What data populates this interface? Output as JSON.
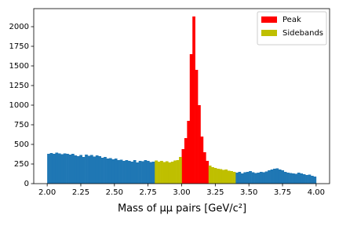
{
  "chart_data": {
    "type": "histogram",
    "x_label": "Mass of μμ pairs [GeV/c²]",
    "bins": [
      2,
      2.02,
      2.04,
      2.06,
      2.08,
      2.1,
      2.12,
      2.14,
      2.16,
      2.18,
      2.2,
      2.22,
      2.24,
      2.26,
      2.28,
      2.3,
      2.32,
      2.34,
      2.36,
      2.38,
      2.4,
      2.42,
      2.44,
      2.46,
      2.48,
      2.5,
      2.52,
      2.54,
      2.56,
      2.58,
      2.6,
      2.62,
      2.64,
      2.66,
      2.68,
      2.7,
      2.72,
      2.74,
      2.76,
      2.78,
      2.8,
      2.82,
      2.84,
      2.86,
      2.88,
      2.9,
      2.92,
      2.94,
      2.96,
      2.98,
      3,
      3.02,
      3.04,
      3.06,
      3.08,
      3.1,
      3.12,
      3.14,
      3.16,
      3.18,
      3.2,
      3.22,
      3.24,
      3.26,
      3.28,
      3.3,
      3.32,
      3.34,
      3.36,
      3.38,
      3.4,
      3.42,
      3.44,
      3.46,
      3.48,
      3.5,
      3.52,
      3.54,
      3.56,
      3.58,
      3.6,
      3.62,
      3.64,
      3.66,
      3.68,
      3.7,
      3.72,
      3.74,
      3.76,
      3.78,
      3.8,
      3.82,
      3.84,
      3.86,
      3.88,
      3.9,
      3.92,
      3.94,
      3.96,
      3.98,
      4
    ],
    "series": [
      {
        "color": "#1f77b4",
        "values": [
          380,
          390,
          380,
          395,
          385,
          375,
          385,
          380,
          370,
          380,
          360,
          350,
          365,
          340,
          370,
          355,
          365,
          345,
          360,
          350,
          330,
          340,
          320,
          325,
          310,
          320,
          300,
          305,
          290,
          300,
          290,
          280,
          300,
          270,
          290,
          285,
          300,
          290,
          275,
          280,
          null,
          null,
          null,
          null,
          null,
          null,
          null,
          null,
          null,
          null,
          null,
          null,
          null,
          null,
          null,
          null,
          null,
          null,
          null,
          null,
          null,
          null,
          null,
          null,
          null,
          null,
          null,
          null,
          null,
          null,
          140,
          150,
          130,
          145,
          150,
          160,
          145,
          135,
          140,
          150,
          145,
          155,
          170,
          180,
          190,
          195,
          180,
          170,
          150,
          140,
          135,
          130,
          125,
          140,
          130,
          120,
          110,
          115,
          100,
          90
        ]
      },
      {
        "name": "Peak",
        "color": "#ff0000",
        "values": [
          null,
          null,
          null,
          null,
          null,
          null,
          null,
          null,
          null,
          null,
          null,
          null,
          null,
          null,
          null,
          null,
          null,
          null,
          null,
          null,
          null,
          null,
          null,
          null,
          null,
          null,
          null,
          null,
          null,
          null,
          null,
          null,
          null,
          null,
          null,
          null,
          null,
          null,
          null,
          null,
          null,
          null,
          null,
          null,
          null,
          null,
          null,
          null,
          null,
          null,
          440,
          580,
          800,
          1650,
          2130,
          1450,
          1000,
          600,
          400,
          290,
          null,
          null,
          null,
          null,
          null,
          null,
          null,
          null,
          null,
          null,
          null,
          null,
          null,
          null,
          null,
          null,
          null,
          null,
          null,
          null,
          null,
          null,
          null,
          null,
          null,
          null,
          null,
          null,
          null,
          null,
          null,
          null,
          null,
          null,
          null,
          null,
          null,
          null,
          null,
          null
        ]
      },
      {
        "name": "Sidebands",
        "color": "#bfbf00",
        "values": [
          null,
          null,
          null,
          null,
          null,
          null,
          null,
          null,
          null,
          null,
          null,
          null,
          null,
          null,
          null,
          null,
          null,
          null,
          null,
          null,
          null,
          null,
          null,
          null,
          null,
          null,
          null,
          null,
          null,
          null,
          null,
          null,
          null,
          null,
          null,
          null,
          null,
          null,
          null,
          null,
          295,
          280,
          290,
          275,
          285,
          270,
          280,
          295,
          300,
          340,
          null,
          null,
          null,
          null,
          null,
          null,
          null,
          null,
          null,
          null,
          230,
          210,
          200,
          190,
          185,
          175,
          180,
          165,
          160,
          150,
          null,
          null,
          null,
          null,
          null,
          null,
          null,
          null,
          null,
          null,
          null,
          null,
          null,
          null,
          null,
          null,
          null,
          null,
          null,
          null,
          null,
          null,
          null,
          null,
          null,
          null,
          null,
          null,
          null,
          null
        ]
      }
    ],
    "xlim": [
      1.9,
      4.1
    ],
    "ylim": [
      0,
      2230
    ],
    "xticks": [
      {
        "value": 2,
        "label": "2.00"
      },
      {
        "value": 2.25,
        "label": "2.25"
      },
      {
        "value": 2.5,
        "label": "2.50"
      },
      {
        "value": 2.75,
        "label": "2.75"
      },
      {
        "value": 3,
        "label": "3.00"
      },
      {
        "value": 3.25,
        "label": "3.25"
      },
      {
        "value": 3.5,
        "label": "3.50"
      },
      {
        "value": 3.75,
        "label": "3.75"
      },
      {
        "value": 4,
        "label": "4.00"
      }
    ],
    "yticks": [
      0,
      250,
      500,
      750,
      1000,
      1250,
      1500,
      1750,
      2000
    ],
    "legend": "upper right"
  }
}
